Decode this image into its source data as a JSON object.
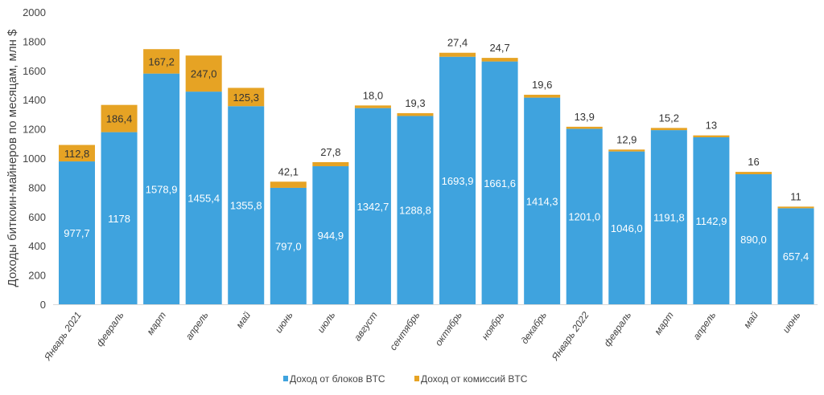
{
  "chart_data": {
    "type": "bar",
    "stacked": true,
    "ylabel": "Доходы биткоин-майнеров по месяцам, млн $",
    "ylim": [
      0,
      2000
    ],
    "yticks": [
      0,
      200,
      400,
      600,
      800,
      1000,
      1200,
      1400,
      1600,
      1800,
      2000
    ],
    "grid": false,
    "legend_position": "bottom",
    "categories": [
      "Январь 2021",
      "февраль",
      "март",
      "апрель",
      "май",
      "июнь",
      "июль",
      "август",
      "сентябрь",
      "октябрь",
      "ноябрь",
      "декабрь",
      "Январь 2022",
      "февраль",
      "март",
      "апрель",
      "май",
      "июнь"
    ],
    "series": [
      {
        "name": "Доход от блоков BTC",
        "color": "#3fa3de",
        "values": [
          977.7,
          1178,
          1578.9,
          1455.4,
          1355.8,
          797.0,
          944.9,
          1342.7,
          1288.8,
          1693.9,
          1661.6,
          1414.3,
          1201.0,
          1046.0,
          1191.8,
          1142.9,
          890.0,
          657.4
        ],
        "labels": [
          "977,7",
          "1178",
          "1578,9",
          "1455,4",
          "1355,8",
          "797,0",
          "944,9",
          "1342,7",
          "1288,8",
          "1693,9",
          "1661,6",
          "1414,3",
          "1201,0",
          "1046,0",
          "1191,8",
          "1142,9",
          "890,0",
          "657,4"
        ]
      },
      {
        "name": "Доход от комиссий BTC",
        "color": "#e6a324",
        "values": [
          112.8,
          186.4,
          167.2,
          247.0,
          125.3,
          42.1,
          27.8,
          18.0,
          19.3,
          27.4,
          24.7,
          19.6,
          13.9,
          12.9,
          15.2,
          13,
          16,
          11
        ],
        "labels": [
          "112,8",
          "186,4",
          "167,2",
          "247,0",
          "125,3",
          "42,1",
          "27,8",
          "18,0",
          "19,3",
          "27,4",
          "24,7",
          "19,6",
          "13,9",
          "12,9",
          "15,2",
          "13",
          "16",
          "11"
        ]
      }
    ]
  }
}
